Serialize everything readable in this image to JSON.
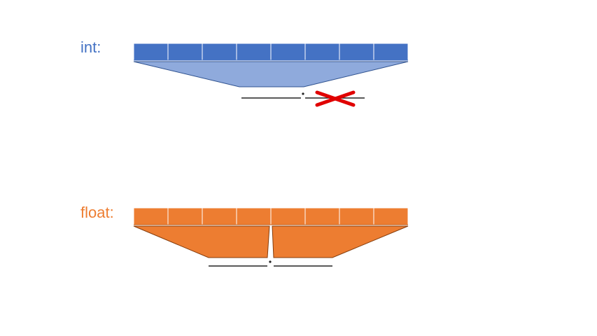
{
  "int_section": {
    "label": "int:",
    "color": "#4472c4",
    "funnel_color": "#8faadc",
    "byte_cells": 8,
    "fraction_crossed_out": true,
    "cross_color": "#e00000"
  },
  "float_section": {
    "label": "float:",
    "color": "#ed7d31",
    "byte_cells": 8,
    "fraction_crossed_out": false
  }
}
